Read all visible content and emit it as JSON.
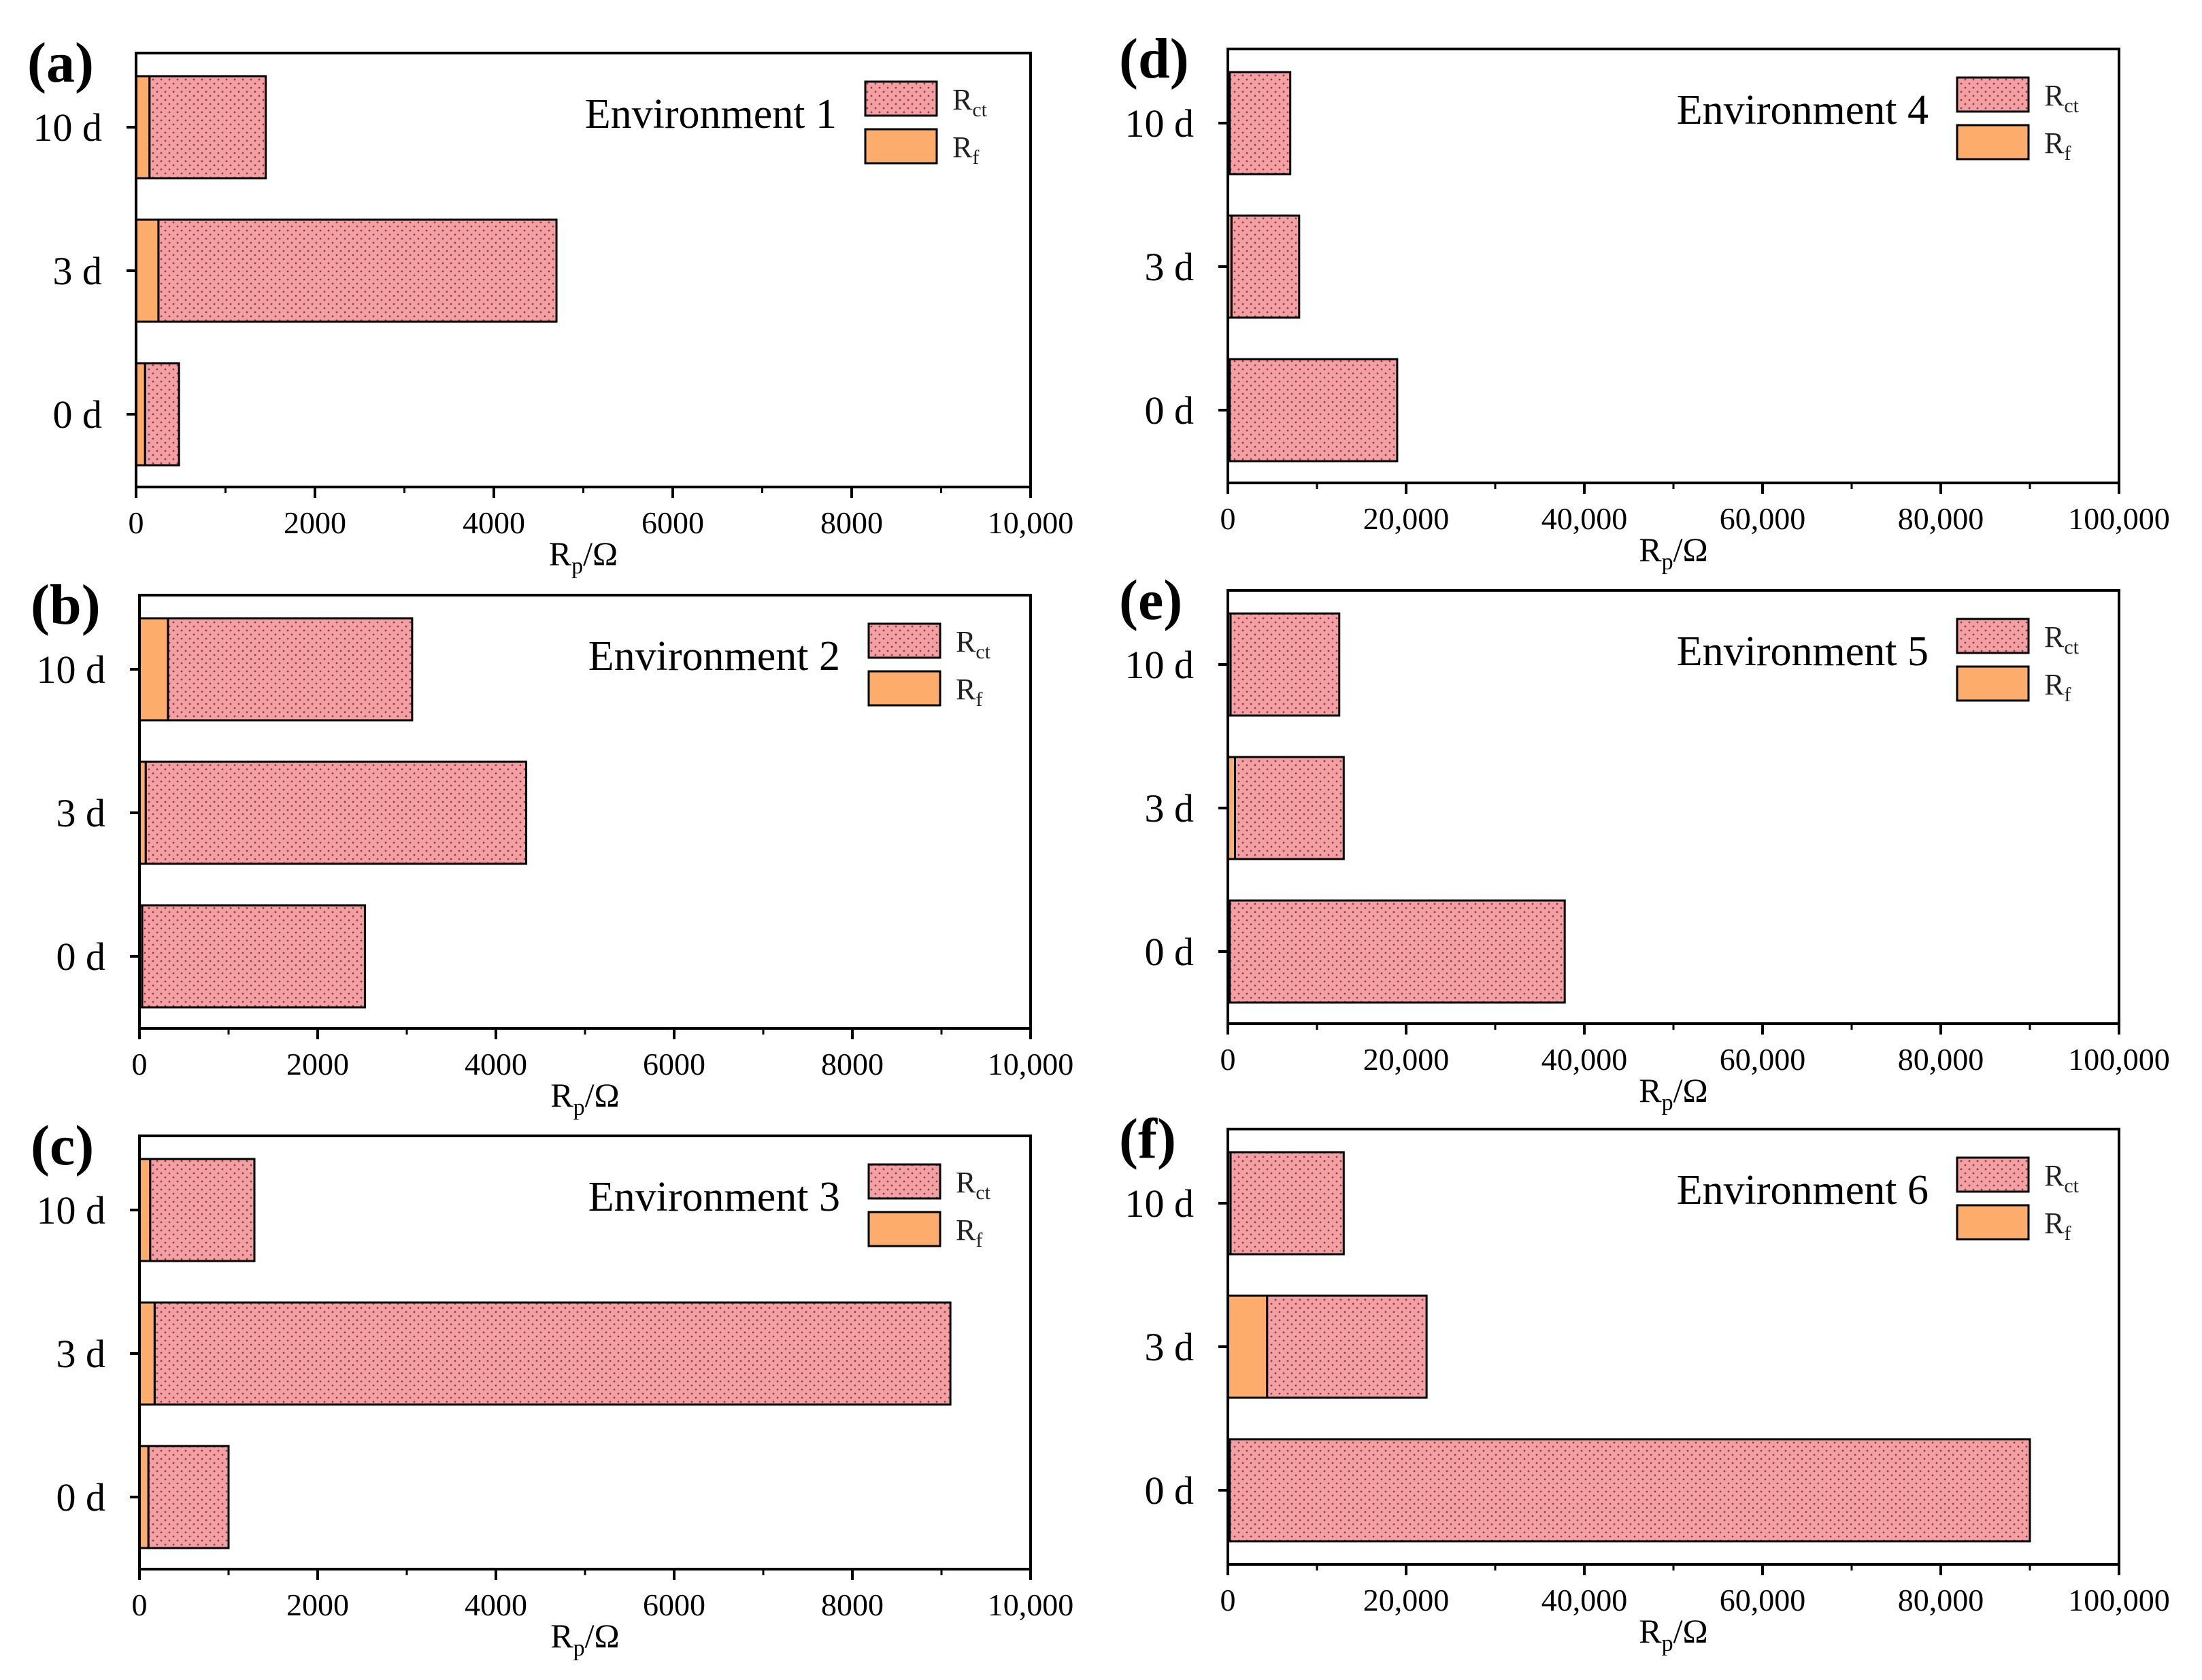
{
  "colors": {
    "rct_fill": "#f3a0a4",
    "rf_fill": "#fdac6b",
    "axis": "#000000",
    "dot": "#9a3a40"
  },
  "axis_label": {
    "main": "R",
    "sub": "p",
    "rest": "/Ω"
  },
  "legend": {
    "rct": {
      "main": "R",
      "sub": "ct"
    },
    "rf": {
      "main": "R",
      "sub": "f"
    }
  },
  "chart_data": [
    {
      "panel": "(a)",
      "type": "bar",
      "orientation": "horizontal",
      "stacked": true,
      "title": "Environment 1",
      "categories": [
        "10 d",
        "3 d",
        "0 d"
      ],
      "series": [
        {
          "name": "Rf",
          "values": [
            150,
            250,
            100
          ]
        },
        {
          "name": "Rct",
          "values": [
            1300,
            4450,
            380
          ]
        }
      ],
      "xlim": [
        0,
        10000
      ],
      "xticks": [
        "0",
        "2000",
        "4000",
        "6000",
        "8000",
        "10,000"
      ],
      "xlabel": "Rp/Ω"
    },
    {
      "panel": "(b)",
      "type": "bar",
      "orientation": "horizontal",
      "stacked": true,
      "title": "Environment 2",
      "categories": [
        "10 d",
        "3 d",
        "0 d"
      ],
      "series": [
        {
          "name": "Rf",
          "values": [
            320,
            70,
            30
          ]
        },
        {
          "name": "Rct",
          "values": [
            2740,
            4270,
            2500
          ]
        }
      ],
      "xlim": [
        0,
        10000
      ],
      "xticks": [
        "0",
        "2000",
        "4000",
        "6000",
        "8000",
        "10,000"
      ],
      "xlabel": "Rp/Ω"
    },
    {
      "panel": "(c)",
      "type": "bar",
      "orientation": "horizontal",
      "stacked": true,
      "title": "Environment 3",
      "categories": [
        "10 d",
        "3 d",
        "0 d"
      ],
      "series": [
        {
          "name": "Rf",
          "values": [
            120,
            170,
            100
          ]
        },
        {
          "name": "Rct",
          "values": [
            1170,
            8930,
            900
          ]
        }
      ],
      "xlim": [
        0,
        10000
      ],
      "xticks": [
        "0",
        "2000",
        "4000",
        "6000",
        "8000",
        "10,000"
      ],
      "xlabel": "Rp/Ω"
    },
    {
      "panel": "(d)",
      "type": "bar",
      "orientation": "horizontal",
      "stacked": true,
      "title": "Environment 4",
      "categories": [
        "10 d",
        "3 d",
        "0 d"
      ],
      "series": [
        {
          "name": "Rf",
          "values": [
            200,
            400,
            200
          ]
        },
        {
          "name": "Rct",
          "values": [
            6800,
            7600,
            18800
          ]
        }
      ],
      "xlim": [
        0,
        100000
      ],
      "xticks": [
        "0",
        "20,000",
        "40,000",
        "60,000",
        "80,000",
        "100,000"
      ],
      "xlabel": "Rp/Ω"
    },
    {
      "panel": "(e)",
      "type": "bar",
      "orientation": "horizontal",
      "stacked": true,
      "title": "Environment 5",
      "categories": [
        "10 d",
        "3 d",
        "0 d"
      ],
      "series": [
        {
          "name": "Rf",
          "values": [
            300,
            800,
            200
          ]
        },
        {
          "name": "Rct",
          "values": [
            12200,
            12200,
            37600
          ]
        }
      ],
      "xlim": [
        0,
        100000
      ],
      "xticks": [
        "0",
        "20,000",
        "40,000",
        "60,000",
        "80,000",
        "100,000"
      ],
      "xlabel": "Rp/Ω"
    },
    {
      "panel": "(f)",
      "type": "bar",
      "orientation": "horizontal",
      "stacked": true,
      "title": "Environment 6",
      "categories": [
        "10 d",
        "3 d",
        "0 d"
      ],
      "series": [
        {
          "name": "Rf",
          "values": [
            300,
            4400,
            200
          ]
        },
        {
          "name": "Rct",
          "values": [
            12700,
            17900,
            89800
          ]
        }
      ],
      "xlim": [
        0,
        100000
      ],
      "xticks": [
        "0",
        "20,000",
        "40,000",
        "60,000",
        "80,000",
        "100,000"
      ],
      "xlabel": "Rp/Ω"
    }
  ]
}
